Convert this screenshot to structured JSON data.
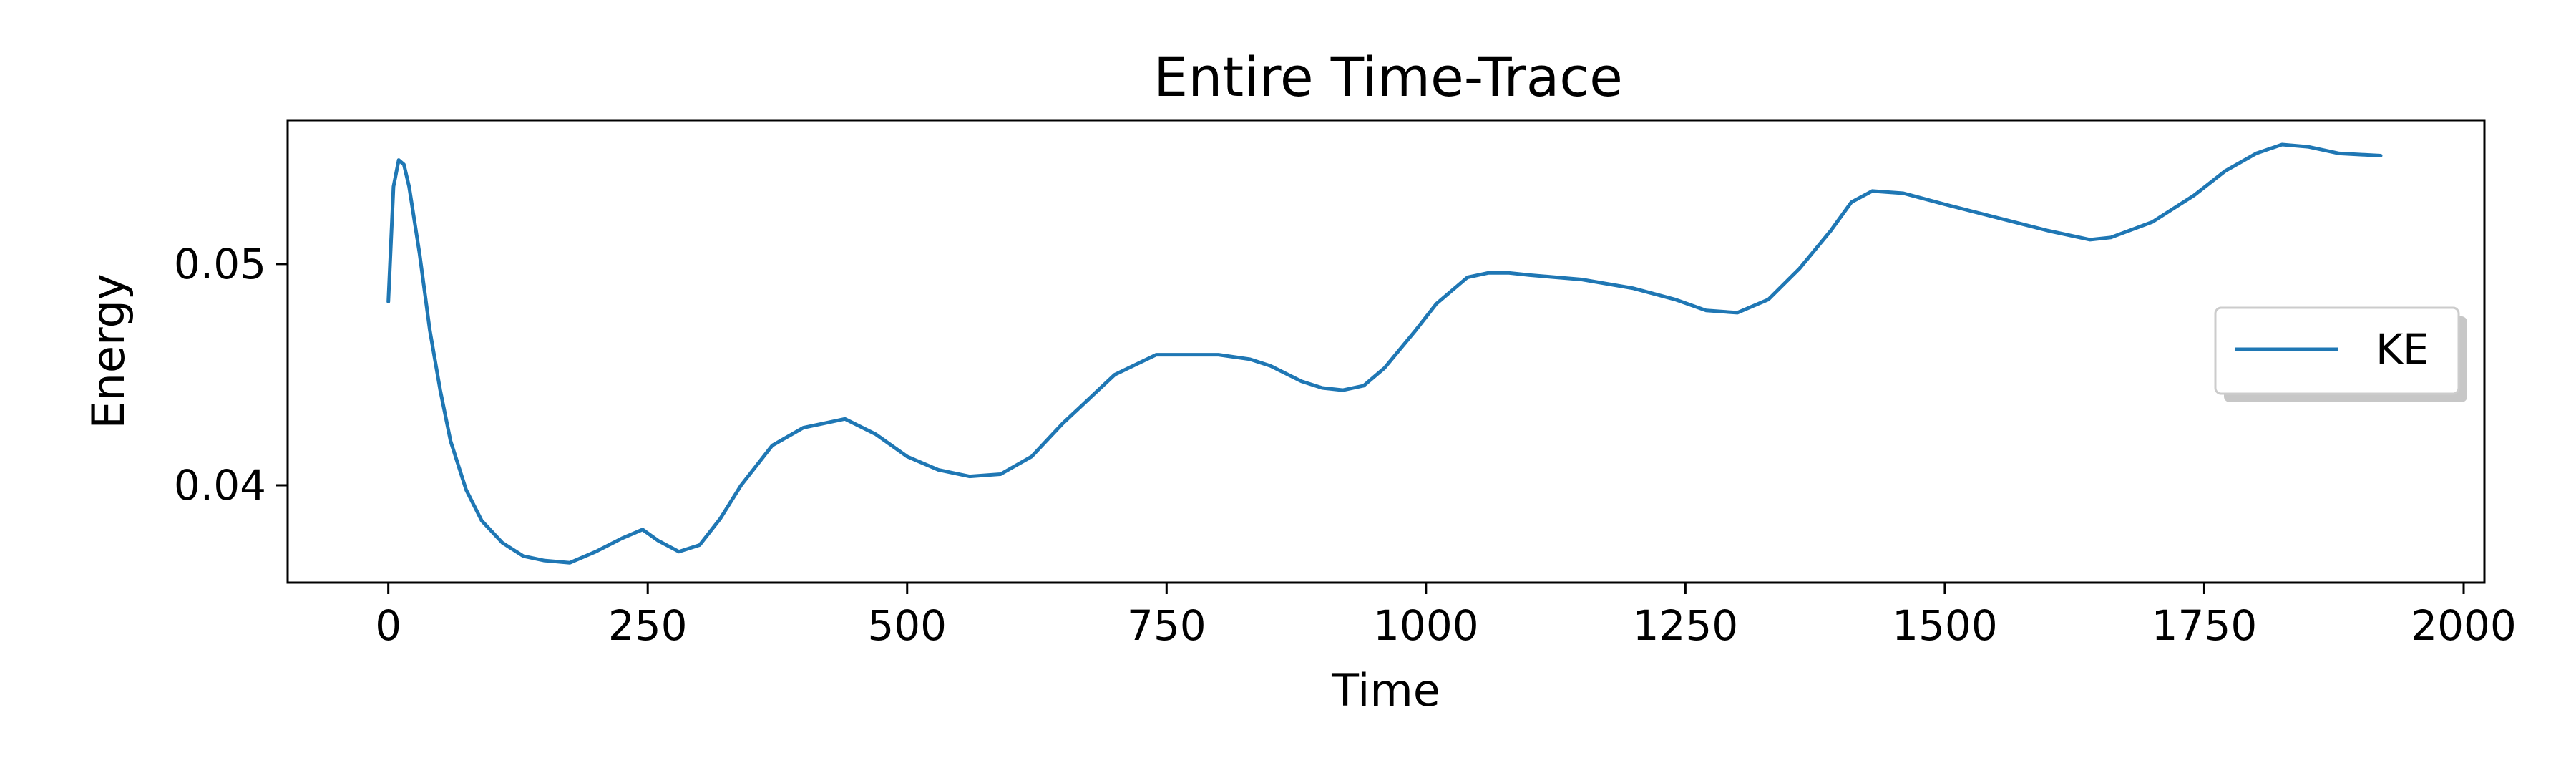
{
  "chart_data": {
    "type": "line",
    "title": "Entire Time-Trace",
    "xlabel": "Time",
    "ylabel": "Energy",
    "xlim": [
      -97,
      2020
    ],
    "ylim": [
      0.0356,
      0.0565
    ],
    "xticks": [
      0,
      250,
      500,
      750,
      1000,
      1250,
      1500,
      1750,
      2000
    ],
    "yticks": [
      0.04,
      0.05
    ],
    "ytick_labels": [
      "0.04",
      "0.05"
    ],
    "grid": false,
    "legend_position": "center-right",
    "series": [
      {
        "name": "KE",
        "color": "#1f77b4",
        "x": [
          0,
          5,
          10,
          15,
          20,
          30,
          40,
          50,
          60,
          75,
          90,
          110,
          130,
          150,
          175,
          200,
          225,
          245,
          260,
          280,
          300,
          320,
          340,
          370,
          400,
          440,
          470,
          500,
          530,
          560,
          590,
          620,
          650,
          700,
          740,
          800,
          830,
          850,
          880,
          900,
          920,
          940,
          960,
          990,
          1010,
          1040,
          1060,
          1080,
          1100,
          1150,
          1200,
          1240,
          1270,
          1300,
          1330,
          1360,
          1390,
          1410,
          1430,
          1460,
          1500,
          1550,
          1600,
          1640,
          1660,
          1700,
          1740,
          1770,
          1800,
          1825,
          1850,
          1880,
          1920
        ],
        "y": [
          0.0483,
          0.0535,
          0.0547,
          0.0545,
          0.0535,
          0.0505,
          0.047,
          0.0443,
          0.042,
          0.0398,
          0.0384,
          0.0374,
          0.0368,
          0.0366,
          0.0365,
          0.037,
          0.0376,
          0.038,
          0.0375,
          0.037,
          0.0373,
          0.0385,
          0.04,
          0.0418,
          0.0426,
          0.043,
          0.0423,
          0.0413,
          0.0407,
          0.0404,
          0.0405,
          0.0413,
          0.0428,
          0.045,
          0.0459,
          0.0459,
          0.0457,
          0.0454,
          0.0447,
          0.0444,
          0.0443,
          0.0445,
          0.0453,
          0.047,
          0.0482,
          0.0494,
          0.0496,
          0.0496,
          0.0495,
          0.0493,
          0.0489,
          0.0484,
          0.0479,
          0.0478,
          0.0484,
          0.0498,
          0.0515,
          0.0528,
          0.0533,
          0.0532,
          0.0527,
          0.0521,
          0.0515,
          0.0511,
          0.0512,
          0.0519,
          0.0531,
          0.0542,
          0.055,
          0.0554,
          0.0553,
          0.055,
          0.0549
        ]
      }
    ]
  }
}
